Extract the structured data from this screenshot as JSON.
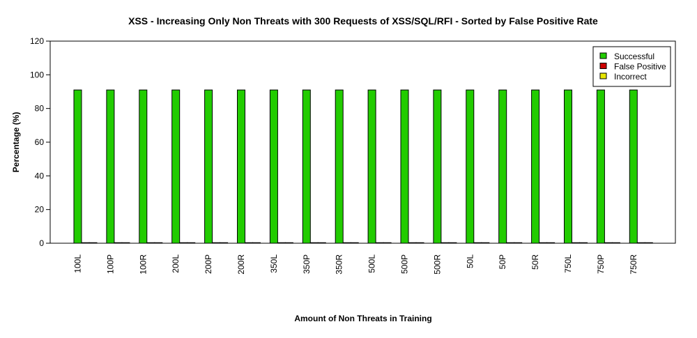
{
  "chart_data": {
    "type": "bar",
    "title": "XSS - Increasing Only Non Threats with 300 Requests of XSS/SQL/RFI - Sorted by False Positive Rate",
    "xlabel": "Amount of Non Threats in Training",
    "ylabel": "Percentage (%)",
    "ylim": [
      0,
      120
    ],
    "yticks": [
      0,
      20,
      40,
      60,
      80,
      100,
      120
    ],
    "categories": [
      "100L",
      "100P",
      "100R",
      "200L",
      "200P",
      "200R",
      "350L",
      "350P",
      "350R",
      "500L",
      "500P",
      "500R",
      "50L",
      "50P",
      "50R",
      "750L",
      "750P",
      "750R"
    ],
    "series": [
      {
        "name": "Successful",
        "color": "#22cc00",
        "values": [
          91,
          91,
          91,
          91,
          91,
          91,
          91,
          91,
          91,
          91,
          91,
          91,
          91,
          91,
          91,
          91,
          91,
          91
        ]
      },
      {
        "name": "False Positive",
        "color": "#cc0000",
        "values": [
          0.2,
          0.2,
          0.2,
          0.2,
          0.2,
          0.2,
          0.2,
          0.2,
          0.2,
          0.2,
          0.2,
          0.2,
          0.2,
          0.2,
          0.2,
          0.2,
          0.2,
          0.2
        ]
      },
      {
        "name": "Incorrect",
        "color": "#e6e600",
        "values": [
          0.2,
          0.2,
          0.2,
          0.2,
          0.2,
          0.2,
          0.2,
          0.2,
          0.2,
          0.2,
          0.2,
          0.2,
          0.2,
          0.2,
          0.2,
          0.2,
          0.2,
          0.2
        ]
      }
    ],
    "legend_position": "top-right",
    "grid": false
  }
}
